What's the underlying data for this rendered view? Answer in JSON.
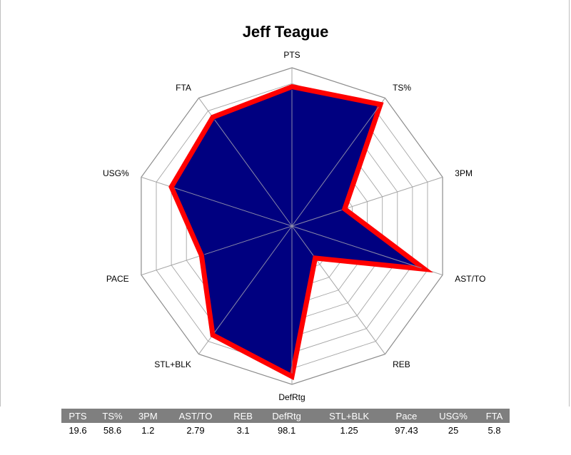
{
  "chart_data": {
    "type": "radar",
    "title": "Jeff Teague",
    "axes": [
      "PTS",
      "TS%",
      "3PM",
      "AST/TO",
      "REB",
      "DefRtg",
      "STL+BLK",
      "Pace",
      "USG%",
      "FTA"
    ],
    "axis_labels": [
      "PTS",
      "TS%",
      "3PM",
      "AST/TO",
      "REB",
      "DefRtg",
      "STL+BLK",
      "PACE",
      "USG%",
      "FTA"
    ],
    "relative_values": [
      0.88,
      0.95,
      0.35,
      0.88,
      0.25,
      0.95,
      0.85,
      0.6,
      0.8,
      0.85
    ],
    "range": [
      0,
      1
    ],
    "rings": 10,
    "fill_color": "#000080",
    "outline_color": "#ff0000",
    "grid_color": "#a6a6a6"
  },
  "stats_table": {
    "headers": [
      "PTS",
      "TS%",
      "3PM",
      "AST/TO",
      "REB",
      "DefRtg",
      "STL+BLK",
      "Pace",
      "USG%",
      "FTA"
    ],
    "values": [
      "19.6",
      "58.6",
      "1.2",
      "2.79",
      "3.1",
      "98.1",
      "1.25",
      "97.43",
      "25",
      "5.8"
    ]
  }
}
